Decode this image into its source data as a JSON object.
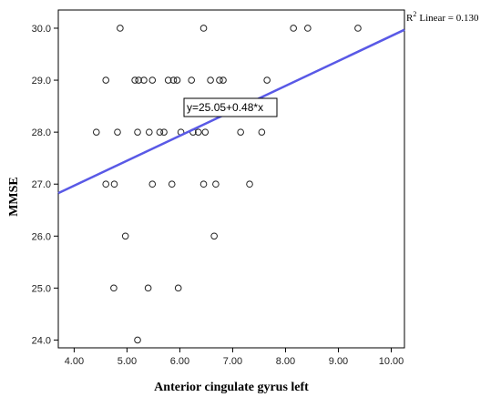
{
  "chart_data": {
    "type": "scatter",
    "xlabel": "Anterior cingulate gyrus left",
    "ylabel": "MMSE",
    "xlim": [
      3.7,
      10.25
    ],
    "ylim": [
      23.85,
      30.35
    ],
    "x_ticks": [
      "4.00",
      "5.00",
      "6.00",
      "7.00",
      "8.00",
      "9.00",
      "10.00"
    ],
    "y_ticks": [
      "24.0",
      "25.0",
      "26.0",
      "27.0",
      "28.0",
      "29.0",
      "30.0"
    ],
    "grid": false,
    "points": [
      {
        "x": 4.87,
        "y": 30
      },
      {
        "x": 6.45,
        "y": 30
      },
      {
        "x": 8.15,
        "y": 30
      },
      {
        "x": 8.42,
        "y": 30
      },
      {
        "x": 9.37,
        "y": 30
      },
      {
        "x": 4.6,
        "y": 29
      },
      {
        "x": 5.15,
        "y": 29
      },
      {
        "x": 5.22,
        "y": 29
      },
      {
        "x": 5.32,
        "y": 29
      },
      {
        "x": 5.48,
        "y": 29
      },
      {
        "x": 5.78,
        "y": 29
      },
      {
        "x": 5.88,
        "y": 29
      },
      {
        "x": 5.95,
        "y": 29
      },
      {
        "x": 6.22,
        "y": 29
      },
      {
        "x": 6.58,
        "y": 29
      },
      {
        "x": 6.75,
        "y": 29
      },
      {
        "x": 6.82,
        "y": 29
      },
      {
        "x": 7.65,
        "y": 29
      },
      {
        "x": 4.42,
        "y": 28
      },
      {
        "x": 4.82,
        "y": 28
      },
      {
        "x": 5.2,
        "y": 28
      },
      {
        "x": 5.42,
        "y": 28
      },
      {
        "x": 5.62,
        "y": 28
      },
      {
        "x": 5.7,
        "y": 28
      },
      {
        "x": 6.02,
        "y": 28
      },
      {
        "x": 6.25,
        "y": 28
      },
      {
        "x": 6.35,
        "y": 28
      },
      {
        "x": 6.48,
        "y": 28
      },
      {
        "x": 7.15,
        "y": 28
      },
      {
        "x": 7.55,
        "y": 28
      },
      {
        "x": 4.6,
        "y": 27
      },
      {
        "x": 4.76,
        "y": 27
      },
      {
        "x": 5.48,
        "y": 27
      },
      {
        "x": 5.85,
        "y": 27
      },
      {
        "x": 6.45,
        "y": 27
      },
      {
        "x": 6.68,
        "y": 27
      },
      {
        "x": 7.32,
        "y": 27
      },
      {
        "x": 4.97,
        "y": 26
      },
      {
        "x": 6.65,
        "y": 26
      },
      {
        "x": 4.75,
        "y": 25
      },
      {
        "x": 5.4,
        "y": 25
      },
      {
        "x": 5.97,
        "y": 25
      },
      {
        "x": 5.2,
        "y": 24
      }
    ],
    "fit_line": {
      "intercept": 25.05,
      "slope": 0.48,
      "color": "#5959e6"
    },
    "equation_label": "y=25.05+0.48*x",
    "r2_label": {
      "prefix": "R",
      "superscript": "2",
      "text": "Linear = 0.130"
    }
  }
}
